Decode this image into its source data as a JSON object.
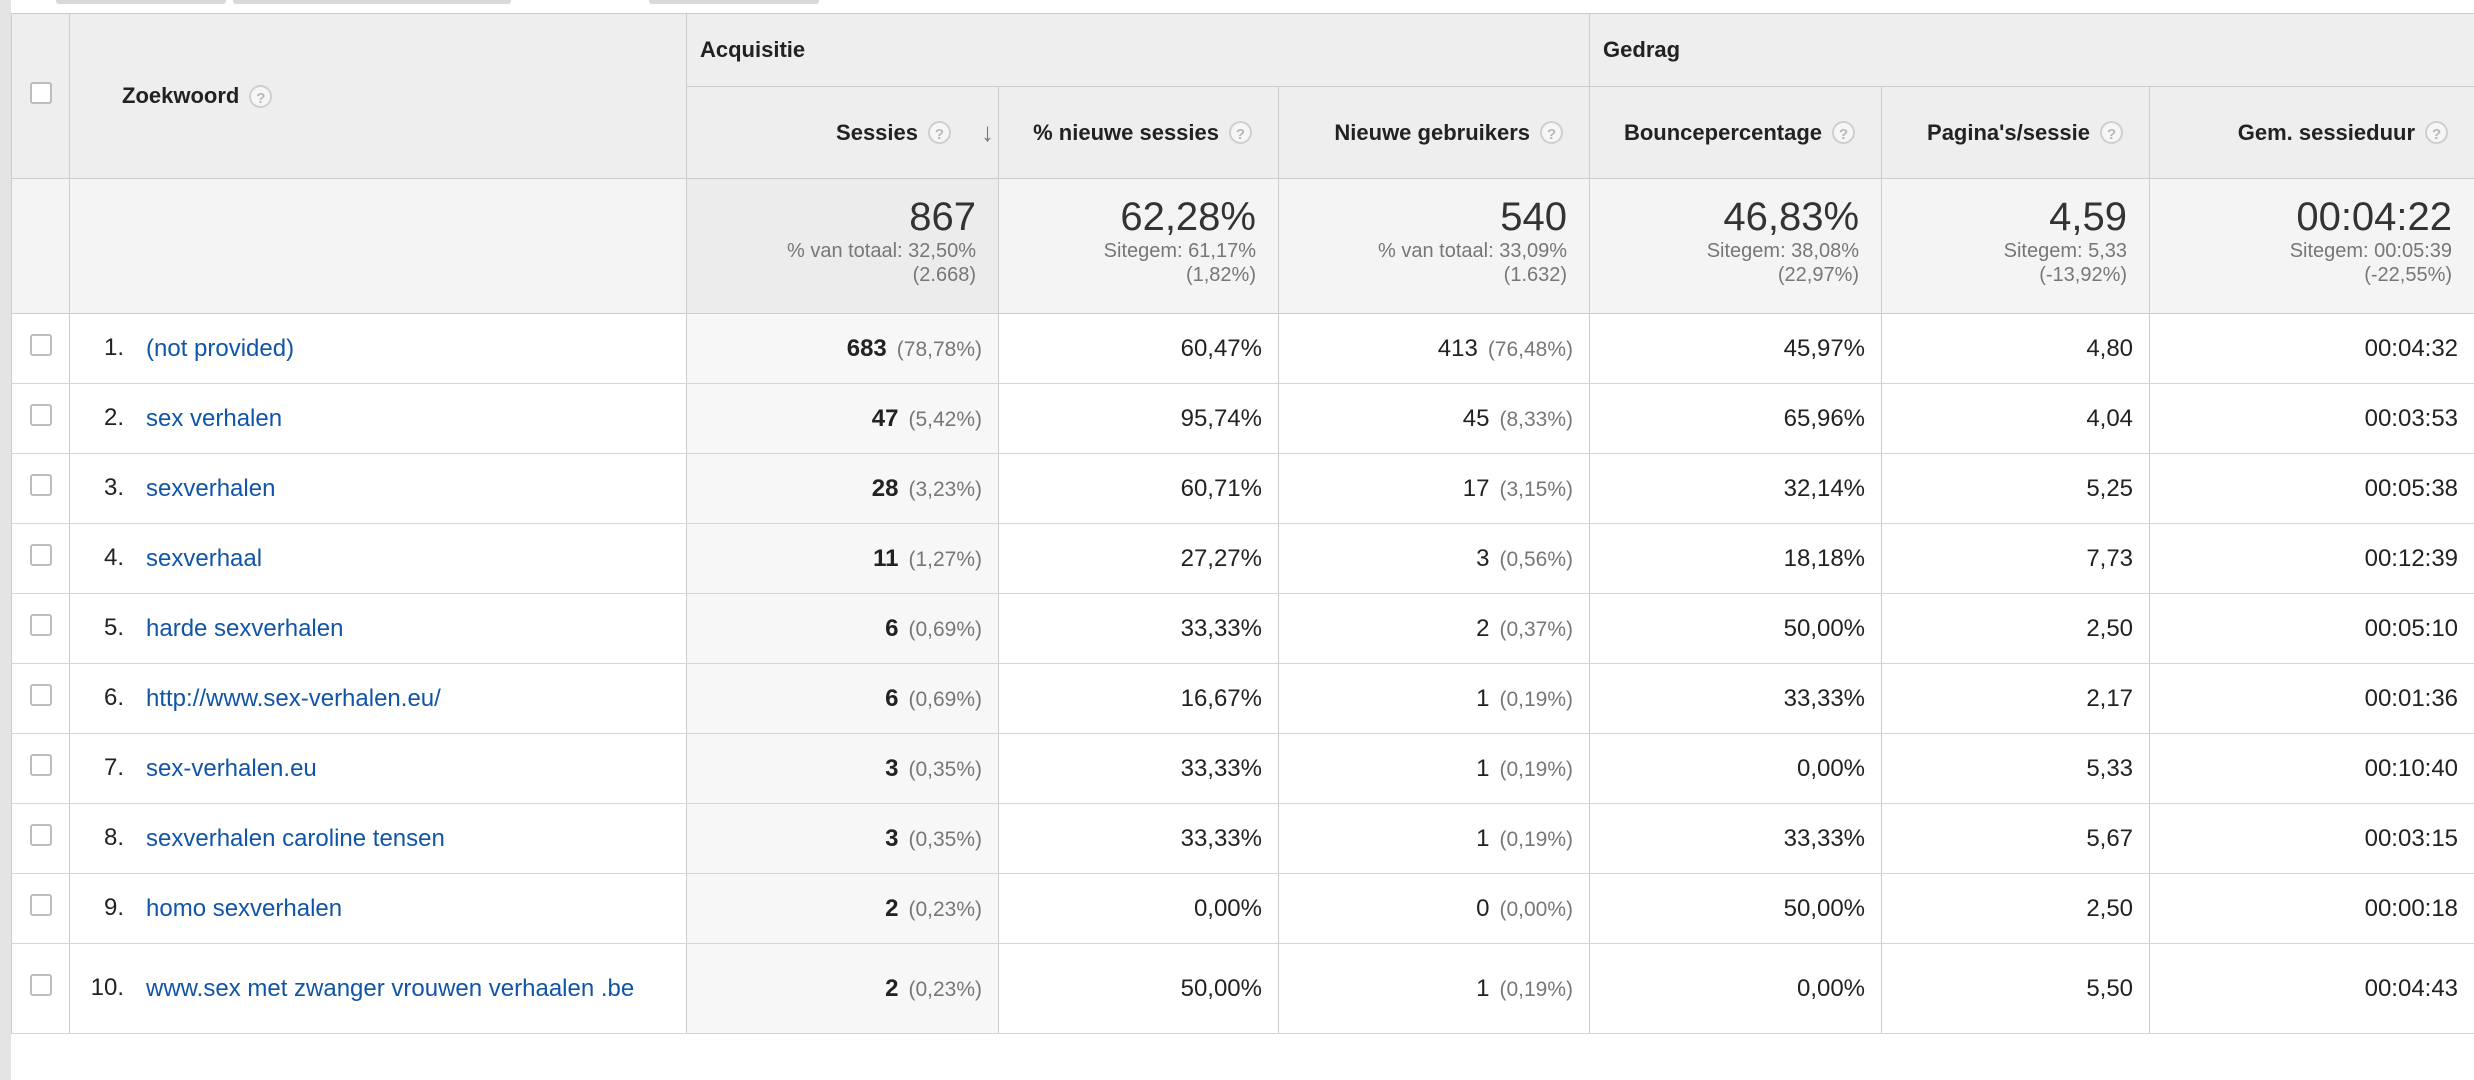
{
  "table": {
    "groups": {
      "acquisition": "Acquisitie",
      "behavior": "Gedrag"
    },
    "columns": {
      "keyword": "Zoekwoord",
      "sessions": "Sessies",
      "new_sessions_pct": "% nieuwe sessies",
      "new_users": "Nieuwe gebruikers",
      "bounce_rate": "Bouncepercentage",
      "pages_per_session": "Pagina's/sessie",
      "avg_session_duration": "Gem. sessieduur"
    },
    "help_icon": "?",
    "sort_icon": "↓",
    "totals": {
      "sessions": {
        "value": "867",
        "line1": "% van totaal: 32,50%",
        "line2": "(2.668)"
      },
      "new_sessions_pct": {
        "value": "62,28%",
        "line1": "Sitegem: 61,17%",
        "line2": "(1,82%)"
      },
      "new_users": {
        "value": "540",
        "line1": "% van totaal: 33,09%",
        "line2": "(1.632)"
      },
      "bounce_rate": {
        "value": "46,83%",
        "line1": "Sitegem: 38,08%",
        "line2": "(22,97%)"
      },
      "pages_per_session": {
        "value": "4,59",
        "line1": "Sitegem: 5,33",
        "line2": "(-13,92%)"
      },
      "avg_session_duration": {
        "value": "00:04:22",
        "line1": "Sitegem: 00:05:39",
        "line2": "(-22,55%)"
      }
    },
    "rows": [
      {
        "index": "1.",
        "keyword": "(not provided)",
        "sessions": "683",
        "sessions_pct": "(78,78%)",
        "new_sessions_pct": "60,47%",
        "new_users": "413",
        "new_users_pct": "(76,48%)",
        "bounce_rate": "45,97%",
        "pages_per_session": "4,80",
        "avg_session_duration": "00:04:32"
      },
      {
        "index": "2.",
        "keyword": "sex verhalen",
        "sessions": "47",
        "sessions_pct": "(5,42%)",
        "new_sessions_pct": "95,74%",
        "new_users": "45",
        "new_users_pct": "(8,33%)",
        "bounce_rate": "65,96%",
        "pages_per_session": "4,04",
        "avg_session_duration": "00:03:53"
      },
      {
        "index": "3.",
        "keyword": "sexverhalen",
        "sessions": "28",
        "sessions_pct": "(3,23%)",
        "new_sessions_pct": "60,71%",
        "new_users": "17",
        "new_users_pct": "(3,15%)",
        "bounce_rate": "32,14%",
        "pages_per_session": "5,25",
        "avg_session_duration": "00:05:38"
      },
      {
        "index": "4.",
        "keyword": "sexverhaal",
        "sessions": "11",
        "sessions_pct": "(1,27%)",
        "new_sessions_pct": "27,27%",
        "new_users": "3",
        "new_users_pct": "(0,56%)",
        "bounce_rate": "18,18%",
        "pages_per_session": "7,73",
        "avg_session_duration": "00:12:39"
      },
      {
        "index": "5.",
        "keyword": "harde sexverhalen",
        "sessions": "6",
        "sessions_pct": "(0,69%)",
        "new_sessions_pct": "33,33%",
        "new_users": "2",
        "new_users_pct": "(0,37%)",
        "bounce_rate": "50,00%",
        "pages_per_session": "2,50",
        "avg_session_duration": "00:05:10"
      },
      {
        "index": "6.",
        "keyword": "http://www.sex-verhalen.eu/",
        "sessions": "6",
        "sessions_pct": "(0,69%)",
        "new_sessions_pct": "16,67%",
        "new_users": "1",
        "new_users_pct": "(0,19%)",
        "bounce_rate": "33,33%",
        "pages_per_session": "2,17",
        "avg_session_duration": "00:01:36"
      },
      {
        "index": "7.",
        "keyword": "sex-verhalen.eu",
        "sessions": "3",
        "sessions_pct": "(0,35%)",
        "new_sessions_pct": "33,33%",
        "new_users": "1",
        "new_users_pct": "(0,19%)",
        "bounce_rate": "0,00%",
        "pages_per_session": "5,33",
        "avg_session_duration": "00:10:40"
      },
      {
        "index": "8.",
        "keyword": "sexverhalen caroline tensen",
        "sessions": "3",
        "sessions_pct": "(0,35%)",
        "new_sessions_pct": "33,33%",
        "new_users": "1",
        "new_users_pct": "(0,19%)",
        "bounce_rate": "33,33%",
        "pages_per_session": "5,67",
        "avg_session_duration": "00:03:15"
      },
      {
        "index": "9.",
        "keyword": "homo sexverhalen",
        "sessions": "2",
        "sessions_pct": "(0,23%)",
        "new_sessions_pct": "0,00%",
        "new_users": "0",
        "new_users_pct": "(0,00%)",
        "bounce_rate": "50,00%",
        "pages_per_session": "2,50",
        "avg_session_duration": "00:00:18"
      },
      {
        "index": "10.",
        "keyword": "www.sex met zwanger vrouwen verhaalen .be",
        "sessions": "2",
        "sessions_pct": "(0,23%)",
        "new_sessions_pct": "50,00%",
        "new_users": "1",
        "new_users_pct": "(0,19%)",
        "bounce_rate": "0,00%",
        "pages_per_session": "5,50",
        "avg_session_duration": "00:04:43"
      }
    ]
  }
}
